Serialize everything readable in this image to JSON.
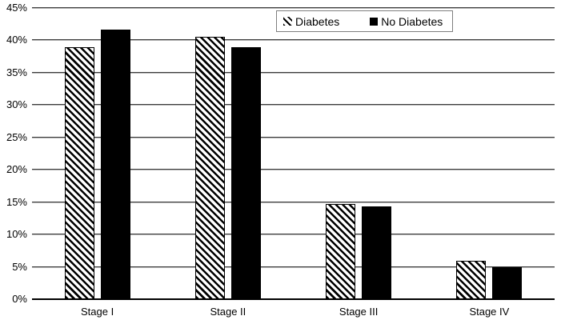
{
  "chart": {
    "background_color": "#ffffff",
    "text_color": "#000000",
    "gridline_color": "#3c3c3c",
    "axis_color": "#000000",
    "bar_fill_color": "#050505",
    "legend_border_color": "#7f7f7f",
    "legend_items": [
      {
        "label": "Diabetes",
        "marker": "hatched-square-icon"
      },
      {
        "label": "No Diabetes",
        "marker": "black-square-icon"
      }
    ]
  },
  "chart_data": {
    "type": "bar",
    "title": "",
    "xlabel": "",
    "ylabel": "",
    "categories": [
      "Stage I",
      "Stage II",
      "Stage III",
      "Stage IV"
    ],
    "series": [
      {
        "name": "Diabetes",
        "style": "diagonal-hatch",
        "values": [
          39,
          40.5,
          14.7,
          5.9
        ]
      },
      {
        "name": "No Diabetes",
        "style": "solid",
        "color": "#000000",
        "values": [
          41.7,
          39,
          14.4,
          5
        ]
      }
    ],
    "ylim": [
      0,
      45
    ],
    "ytick_step": 5,
    "ytick_labels": [
      "0%",
      "5%",
      "10%",
      "15%",
      "20%",
      "25%",
      "30%",
      "35%",
      "40%",
      "45%"
    ],
    "grid": "horizontal",
    "legend_position": "top-center"
  }
}
